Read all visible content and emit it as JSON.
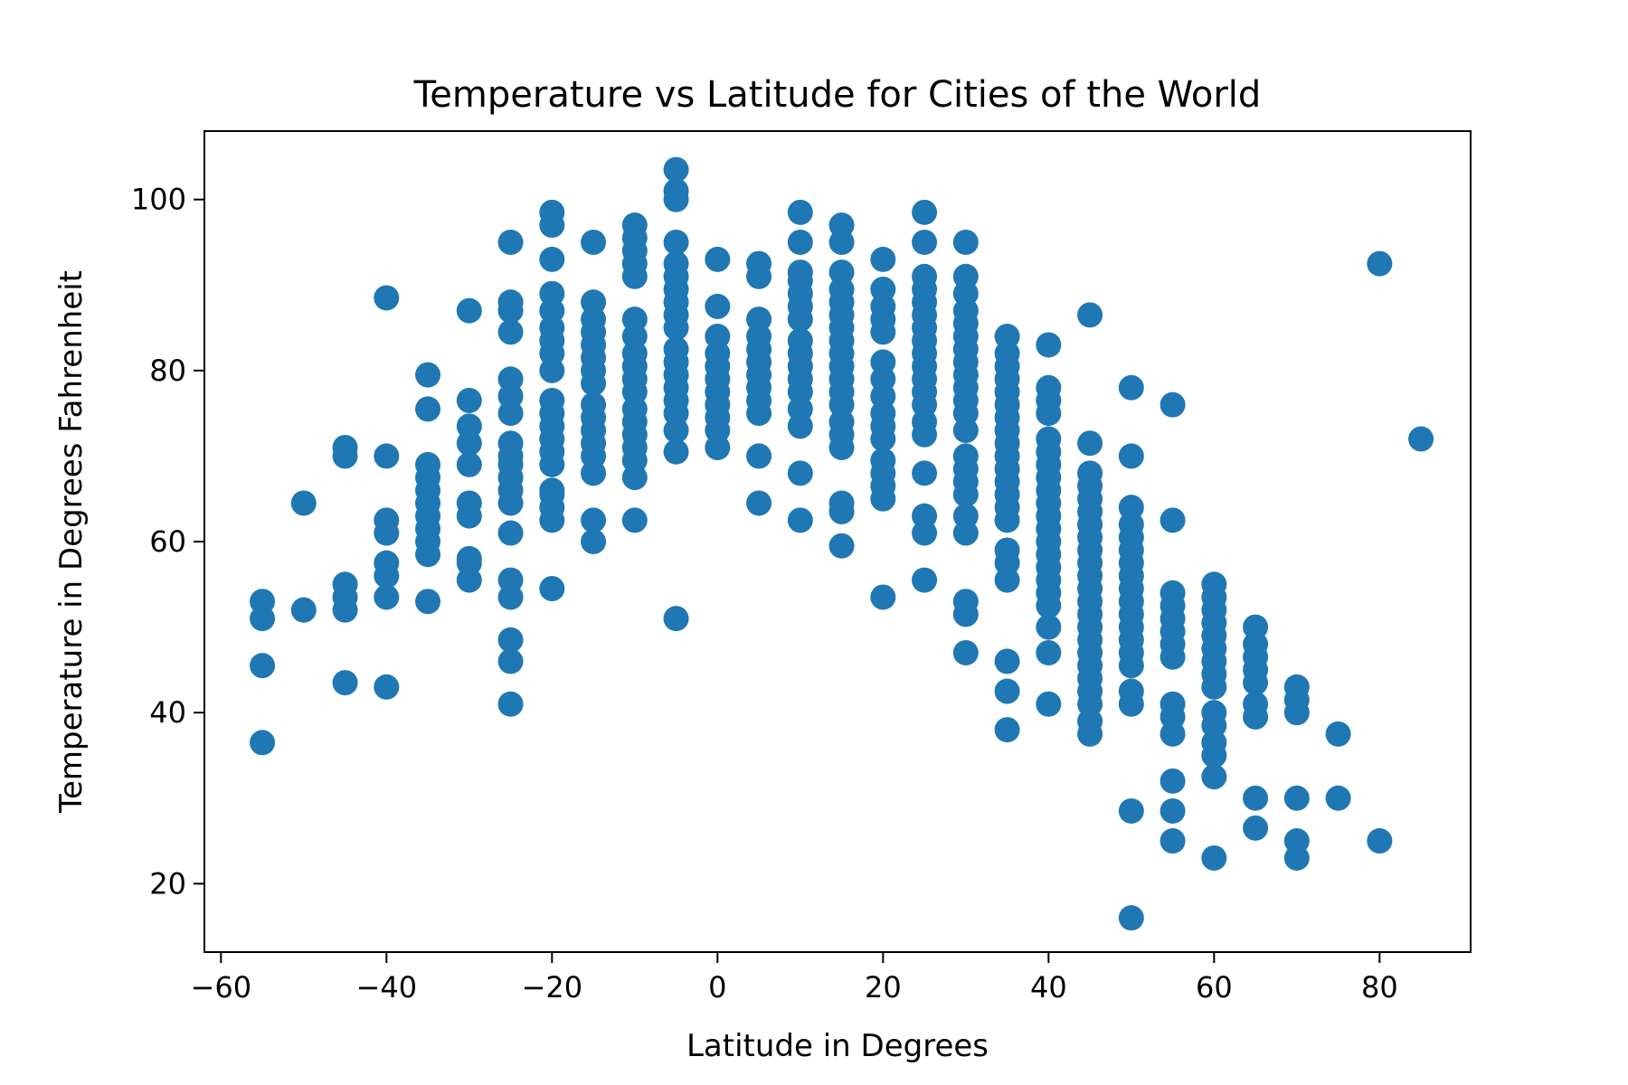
{
  "chart_data": {
    "type": "scatter",
    "title": "Temperature vs Latitude for Cities of the World",
    "xlabel": "Latitude in Degrees",
    "ylabel": "Temperature in Degrees Fahrenheit",
    "xlim": [
      -62,
      91
    ],
    "ylim": [
      12,
      108
    ],
    "xticks": [
      -60,
      -40,
      -20,
      0,
      20,
      40,
      60,
      80
    ],
    "xtick_labels": [
      "−60",
      "−40",
      "−20",
      "0",
      "20",
      "40",
      "60",
      "80"
    ],
    "yticks": [
      20,
      40,
      60,
      80,
      100
    ],
    "ytick_labels": [
      "20",
      "40",
      "60",
      "80",
      "100"
    ],
    "grid": false,
    "marker_color": "#1f77b4",
    "columns": [
      {
        "x": -55,
        "y": [
          36.5,
          45.5,
          51,
          53
        ]
      },
      {
        "x": -50,
        "y": [
          52,
          64.5
        ]
      },
      {
        "x": -45,
        "y": [
          43.5,
          52,
          53.5,
          55,
          70,
          71
        ]
      },
      {
        "x": -40,
        "y": [
          43,
          53.5,
          56,
          57.5,
          61,
          62.5,
          70,
          88.5
        ]
      },
      {
        "x": -35,
        "y": [
          53,
          58.5,
          60,
          61.5,
          63,
          64.5,
          66,
          67.5,
          69,
          75.5,
          79.5
        ]
      },
      {
        "x": -30,
        "y": [
          55.5,
          57.5,
          58,
          63,
          64.5,
          69,
          71.5,
          73.5,
          76.5,
          87
        ]
      },
      {
        "x": -25,
        "y": [
          41,
          46,
          48.5,
          53.5,
          55.5,
          61,
          64.5,
          66,
          67.5,
          69,
          70,
          71.5,
          75,
          77,
          79,
          84.5,
          87,
          88,
          95
        ]
      },
      {
        "x": -20,
        "y": [
          54.5,
          62.5,
          64,
          65.5,
          66,
          69,
          70.5,
          72,
          73.5,
          75,
          76.5,
          80,
          82,
          83.5,
          85,
          87,
          89,
          93,
          97,
          98.5
        ]
      },
      {
        "x": -15,
        "y": [
          60,
          62.5,
          68,
          70,
          71.5,
          73,
          74.5,
          76,
          78.5,
          80,
          81.5,
          83,
          84.5,
          86,
          88,
          95
        ]
      },
      {
        "x": -10,
        "y": [
          62.5,
          67.5,
          69.5,
          71,
          72.5,
          74,
          75.5,
          77.5,
          79,
          80.5,
          82,
          84,
          86,
          91,
          92.5,
          94,
          95.5,
          97
        ]
      },
      {
        "x": -5,
        "y": [
          51,
          70.5,
          73,
          75,
          76.5,
          78,
          79.5,
          81,
          82.5,
          85,
          86.5,
          88,
          89.5,
          91,
          92.5,
          95,
          100,
          101,
          103.5
        ]
      },
      {
        "x": 0,
        "y": [
          71,
          73,
          74.5,
          76,
          77.5,
          79,
          80.5,
          82,
          84,
          87.5,
          93
        ]
      },
      {
        "x": 5,
        "y": [
          64.5,
          70,
          75,
          76.5,
          78,
          79.5,
          81,
          82.5,
          84,
          86,
          91,
          92.5
        ]
      },
      {
        "x": 10,
        "y": [
          62.5,
          68,
          73.5,
          75.5,
          77.5,
          79,
          80.5,
          82,
          83.5,
          86,
          87.5,
          89,
          90.5,
          91.5,
          95,
          98.5
        ]
      },
      {
        "x": 15,
        "y": [
          59.5,
          63.5,
          64.5,
          71,
          72.5,
          74,
          76,
          77.5,
          79,
          80.5,
          82,
          83.5,
          85,
          86.5,
          88,
          89.5,
          91.5,
          95,
          97
        ]
      },
      {
        "x": 20,
        "y": [
          53.5,
          65,
          66.5,
          68,
          69.5,
          72,
          73.5,
          75,
          77,
          79,
          81,
          84.5,
          86,
          87.5,
          89.5,
          93
        ]
      },
      {
        "x": 25,
        "y": [
          55.5,
          61,
          63,
          68,
          72.5,
          74,
          76,
          77.5,
          79,
          80.5,
          82,
          83.5,
          85,
          86.5,
          88,
          89.5,
          91,
          95,
          98.5
        ]
      },
      {
        "x": 30,
        "y": [
          47,
          51.5,
          53,
          61,
          63,
          65.5,
          67,
          68.5,
          70,
          73,
          75,
          76.5,
          78,
          79.5,
          81,
          82.5,
          84,
          85.5,
          87,
          89,
          91,
          95
        ]
      },
      {
        "x": 35,
        "y": [
          38,
          42.5,
          46,
          55.5,
          57.5,
          59,
          62.5,
          64,
          65.5,
          67,
          68.5,
          70,
          71.5,
          73,
          74.5,
          76,
          77.5,
          79,
          80.5,
          82,
          84
        ]
      },
      {
        "x": 40,
        "y": [
          41,
          47,
          50,
          52.5,
          54,
          55.5,
          57,
          58.5,
          60,
          61.5,
          63,
          64.5,
          66,
          67.5,
          69,
          70.5,
          72,
          75,
          76.5,
          78,
          83
        ]
      },
      {
        "x": 45,
        "y": [
          37.5,
          39,
          41,
          42.5,
          44,
          45.5,
          47,
          48.5,
          50,
          51.5,
          53,
          54.5,
          56,
          57.5,
          59,
          60.5,
          62,
          63.5,
          65,
          66.5,
          68,
          71.5,
          86.5
        ]
      },
      {
        "x": 50,
        "y": [
          16,
          28.5,
          41,
          42.5,
          45.5,
          47,
          48.5,
          50,
          51.5,
          53,
          54.5,
          56,
          57.5,
          59,
          60.5,
          62,
          64,
          70,
          78
        ]
      },
      {
        "x": 55,
        "y": [
          25,
          28.5,
          32,
          37.5,
          39.5,
          41,
          46.5,
          48,
          49.5,
          51,
          52.5,
          54,
          62.5,
          76
        ]
      },
      {
        "x": 60,
        "y": [
          23,
          32.5,
          35,
          36.5,
          38.5,
          40,
          43,
          44.5,
          46,
          47.5,
          49,
          50.5,
          52,
          53.5,
          55
        ]
      },
      {
        "x": 65,
        "y": [
          26.5,
          30,
          39.5,
          41,
          43.5,
          45,
          46.5,
          48,
          50
        ]
      },
      {
        "x": 70,
        "y": [
          23,
          25,
          30,
          40,
          41.5,
          43
        ]
      },
      {
        "x": 75,
        "y": [
          30,
          37.5
        ]
      },
      {
        "x": 80,
        "y": [
          25,
          92.5
        ]
      },
      {
        "x": 85,
        "y": [
          72
        ]
      }
    ]
  }
}
